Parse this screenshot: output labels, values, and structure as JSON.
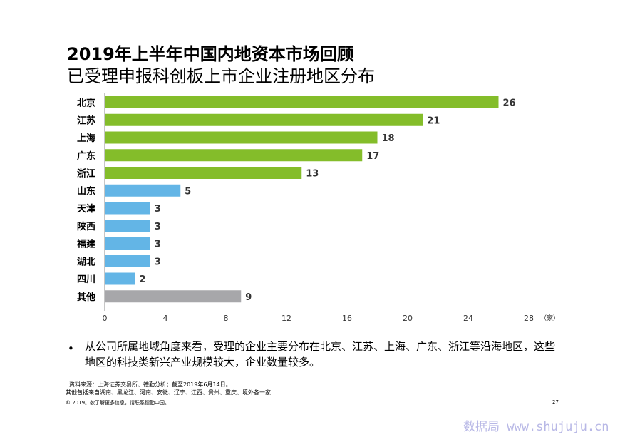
{
  "header": {
    "title": "2019年上半年中国内地资本市场回顾",
    "subtitle": "已受理申报科创板上市企业注册地区分布"
  },
  "chart_data": {
    "type": "bar",
    "orientation": "horizontal",
    "categories": [
      "北京",
      "江苏",
      "上海",
      "广东",
      "浙江",
      "山东",
      "天津",
      "陕西",
      "福建",
      "湖北",
      "四川",
      "其他"
    ],
    "values": [
      26,
      21,
      18,
      17,
      13,
      5,
      3,
      3,
      3,
      3,
      2,
      9
    ],
    "bar_colors": [
      "#84bd2a",
      "#84bd2a",
      "#84bd2a",
      "#84bd2a",
      "#84bd2a",
      "#63b5e6",
      "#63b5e6",
      "#63b5e6",
      "#63b5e6",
      "#63b5e6",
      "#63b5e6",
      "#a7a7aa"
    ],
    "xticks": [
      "0",
      "4",
      "8",
      "12",
      "16",
      "20",
      "24",
      "28"
    ],
    "xlim": [
      0,
      28
    ],
    "unit_label": "（家）",
    "grid": false
  },
  "notes": {
    "bullet": "从公司所属地域角度来看，受理的企业主要分布在北京、江苏、上海、广东、浙江等沿海地区，这些地区的科技类新兴产业规模较大，企业数量较多。",
    "source": "资料来源：上海证券交易所、德勤分析；截至2019年6月14日。",
    "other_note": "其他包括来自湖南、黑龙江、河南、安徽、辽宁、江西、贵州、重庆、境外各一家"
  },
  "footer": {
    "copyright": "© 2019。欲了解更多信息，请联系德勤中国。",
    "page_number": "27",
    "watermark": "数据局 www.shujuju.cn"
  }
}
